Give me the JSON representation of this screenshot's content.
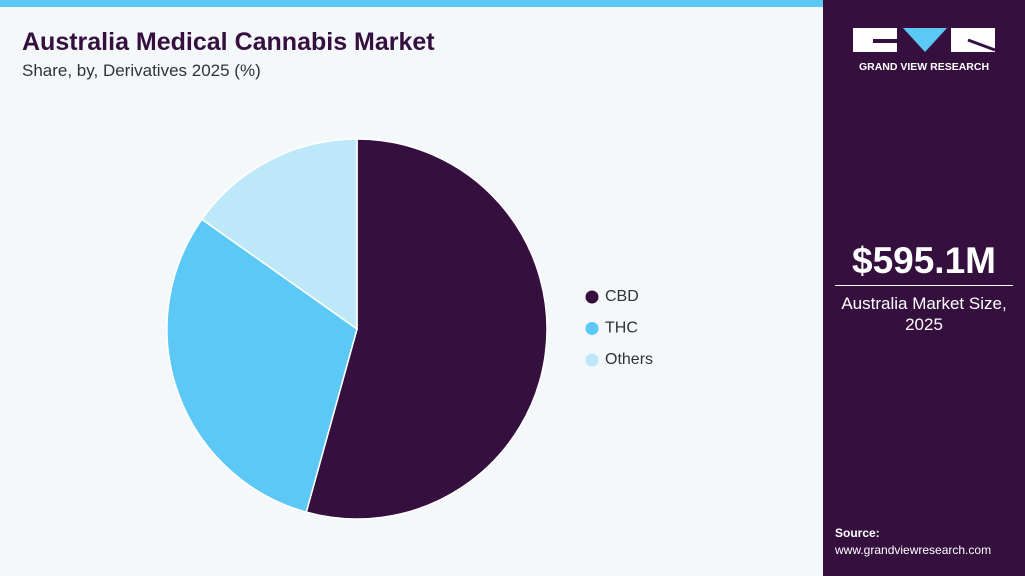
{
  "chart_data": {
    "type": "pie",
    "title": "Australia Medical Cannabis Market",
    "subtitle": "Share, by, Derivatives 2025 (%)",
    "categories": [
      "CBD",
      "THC",
      "Others"
    ],
    "values": [
      54.3,
      30.5,
      15.2
    ],
    "colors": [
      "#35103f",
      "#5bc8f5",
      "#bde8f9"
    ],
    "legend": "right"
  },
  "sidebar": {
    "brand": "GRAND VIEW RESEARCH",
    "market_size": "$595.1M",
    "market_label": "Australia Market Size, 2025",
    "source_label": "Source:",
    "source_url": "www.grandviewresearch.com"
  }
}
